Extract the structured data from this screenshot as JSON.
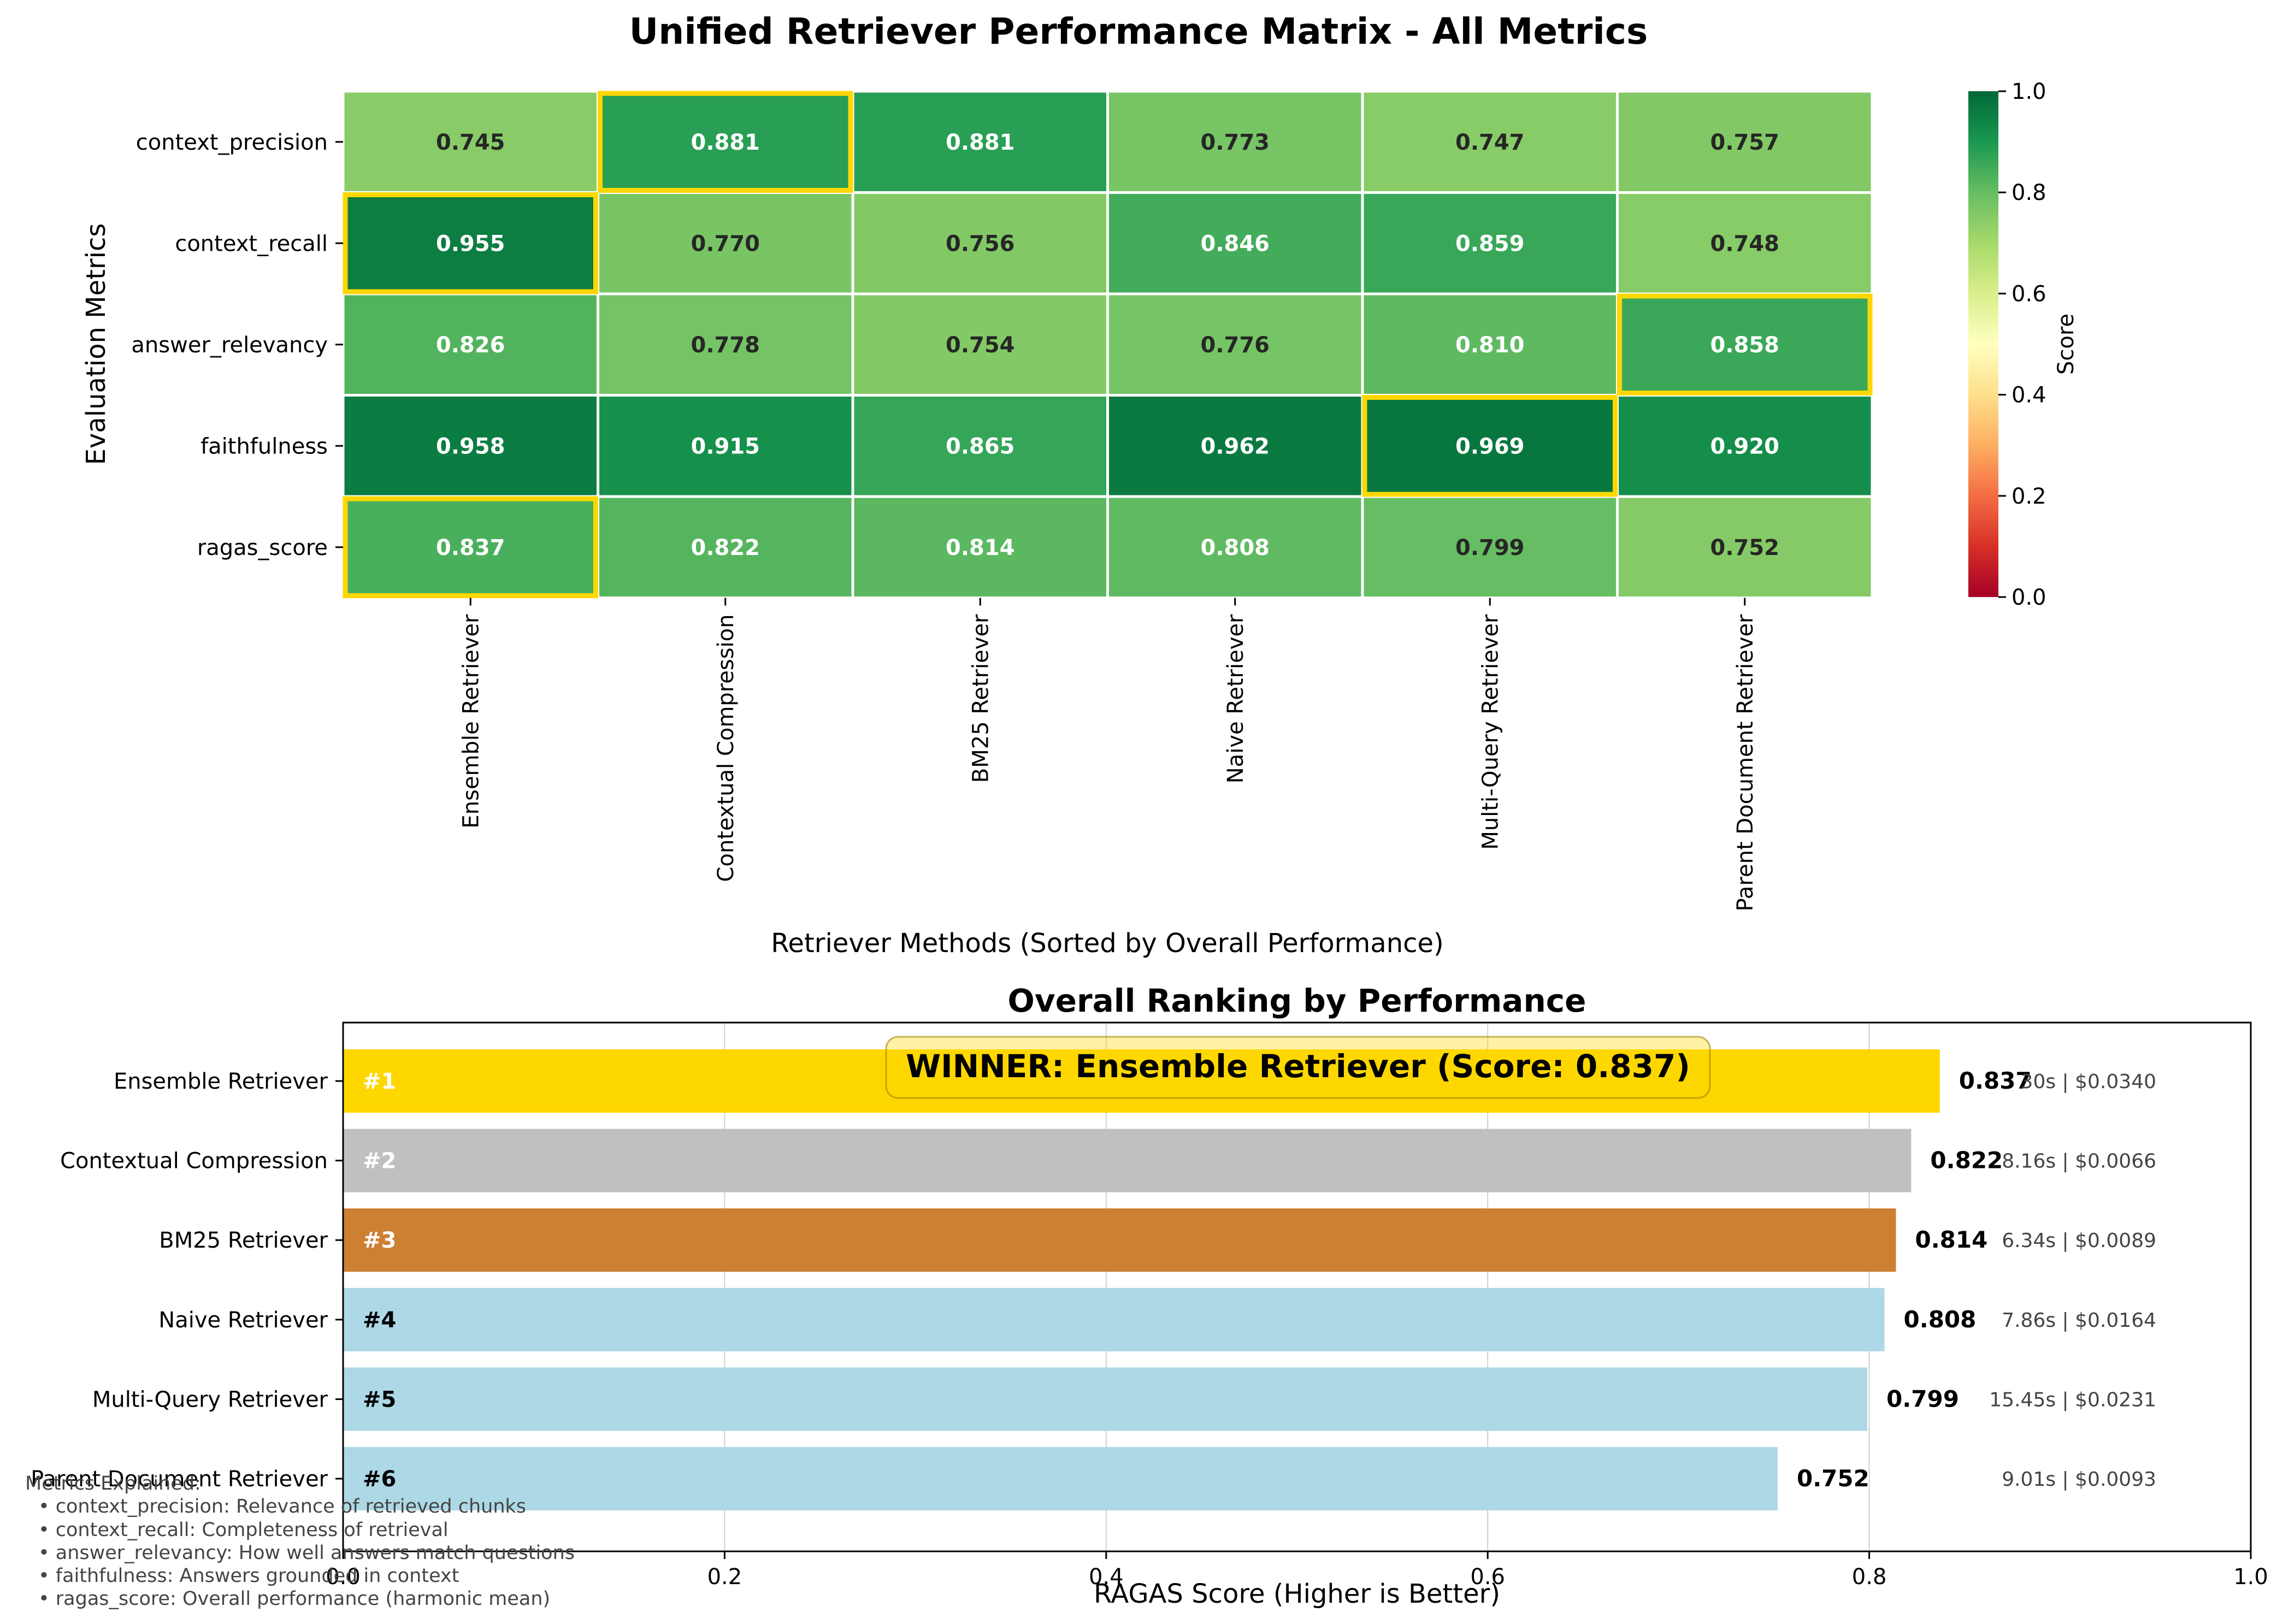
{
  "chart_data": [
    {
      "type": "heatmap",
      "title": "Unified Retriever Performance Matrix - All Metrics",
      "xlabel": "Retriever Methods (Sorted by Overall Performance)",
      "ylabel": "Evaluation Metrics",
      "columns": [
        "Ensemble Retriever",
        "Contextual Compression",
        "BM25 Retriever",
        "Naive Retriever",
        "Multi-Query Retriever",
        "Parent Document Retriever"
      ],
      "rows": [
        "context_precision",
        "context_recall",
        "answer_relevancy",
        "faithfulness",
        "ragas_score"
      ],
      "values": [
        [
          0.745,
          0.881,
          0.881,
          0.773,
          0.747,
          0.757
        ],
        [
          0.955,
          0.77,
          0.756,
          0.846,
          0.859,
          0.748
        ],
        [
          0.826,
          0.778,
          0.754,
          0.776,
          0.81,
          0.858
        ],
        [
          0.958,
          0.915,
          0.865,
          0.962,
          0.969,
          0.92
        ],
        [
          0.837,
          0.822,
          0.814,
          0.808,
          0.799,
          0.752
        ]
      ],
      "value_labels": [
        [
          "0.745",
          "0.881",
          "0.881",
          "0.773",
          "0.747",
          "0.757"
        ],
        [
          "0.955",
          "0.770",
          "0.756",
          "0.846",
          "0.859",
          "0.748"
        ],
        [
          "0.826",
          "0.778",
          "0.754",
          "0.776",
          "0.810",
          "0.858"
        ],
        [
          "0.958",
          "0.915",
          "0.865",
          "0.962",
          "0.969",
          "0.920"
        ],
        [
          "0.837",
          "0.822",
          "0.814",
          "0.808",
          "0.799",
          "0.752"
        ]
      ],
      "highlighted_cells": [
        [
          0,
          1
        ],
        [
          1,
          0
        ],
        [
          2,
          5
        ],
        [
          3,
          4
        ],
        [
          4,
          0
        ]
      ],
      "highlight_color": "#FFD700",
      "colormap": "RdYlGn",
      "vmin": 0.0,
      "vmax": 1.0,
      "colorbar_label": "Score",
      "colorbar_ticks": [
        "0.0",
        "0.2",
        "0.4",
        "0.6",
        "0.8",
        "1.0"
      ]
    },
    {
      "type": "bar",
      "orientation": "horizontal",
      "title": "Overall Ranking by Performance",
      "xlabel": "RAGAS Score (Higher is Better)",
      "xlim": [
        0,
        1.0
      ],
      "xticks": [
        "0.0",
        "0.2",
        "0.4",
        "0.6",
        "0.8",
        "1.0"
      ],
      "grid": "x",
      "categories": [
        "Ensemble Retriever",
        "Contextual Compression",
        "BM25 Retriever",
        "Naive Retriever",
        "Multi-Query Retriever",
        "Parent Document Retriever"
      ],
      "values": [
        0.837,
        0.822,
        0.814,
        0.808,
        0.799,
        0.752
      ],
      "value_labels": [
        "0.837",
        "0.822",
        "0.814",
        "0.808",
        "0.799",
        "0.752"
      ],
      "rank_labels": [
        "#1",
        "#2",
        "#3",
        "#4",
        "#5",
        "#6"
      ],
      "meta_labels": [
        "30s | $0.0340",
        "8.16s | $0.0066",
        "6.34s | $0.0089",
        "7.86s | $0.0164",
        "15.45s | $0.0231",
        "9.01s | $0.0093"
      ],
      "bar_colors": [
        "#FFD700",
        "#C0C0C0",
        "#CD7F32",
        "#ADD8E6",
        "#ADD8E6",
        "#ADD8E6"
      ],
      "rank_label_colors": [
        "#ffffff",
        "#ffffff",
        "#ffffff",
        "#000000",
        "#000000",
        "#000000"
      ],
      "winner_banner": "WINNER: Ensemble Retriever (Score: 0.837)"
    }
  ],
  "legend_note": {
    "heading": "Metrics Explained:",
    "lines": [
      "• context_precision: Relevance of retrieved chunks",
      "• context_recall: Completeness of retrieval",
      "• answer_relevancy: How well answers match questions",
      "• faithfulness: Answers grounded in context",
      "• ragas_score: Overall performance (harmonic mean)"
    ]
  }
}
